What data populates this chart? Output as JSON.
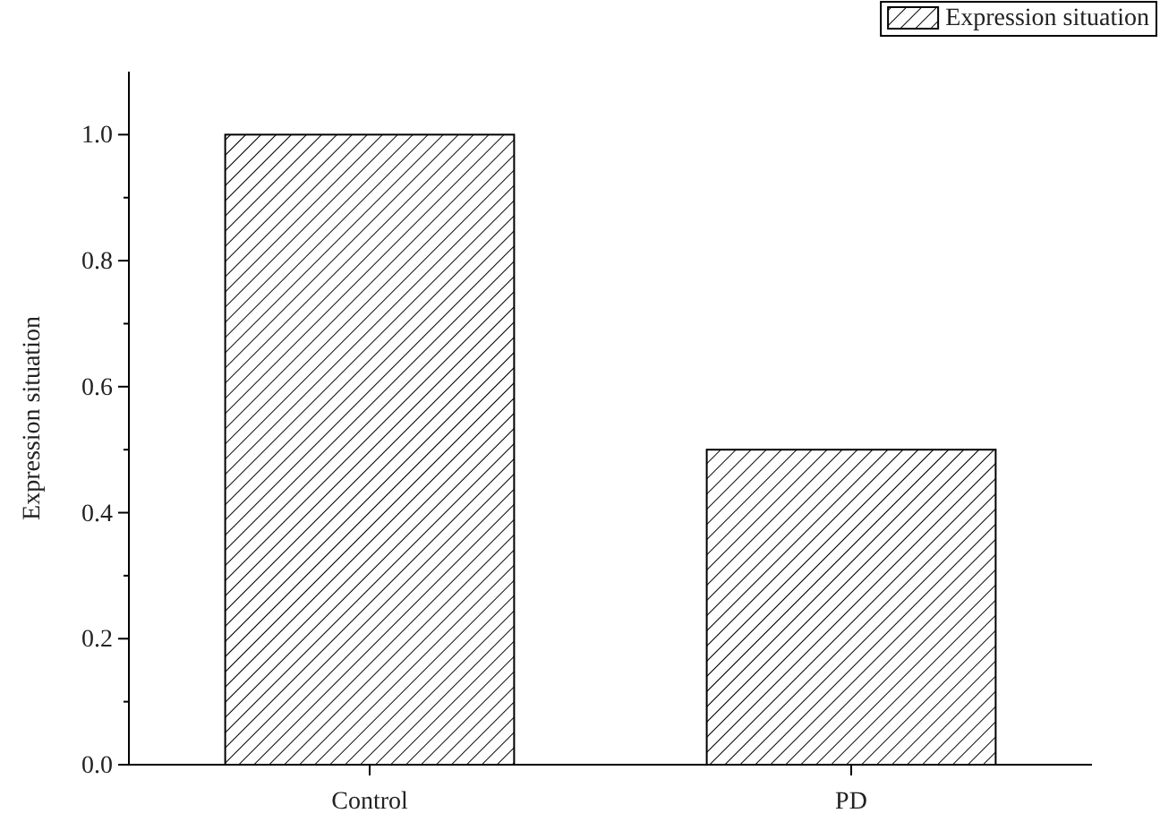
{
  "chart_data": {
    "type": "bar",
    "ylabel": "Expression situation",
    "categories": [
      "Control",
      "PD"
    ],
    "series": [
      {
        "name": "Expression situation",
        "color": "#000000",
        "values": [
          1.0,
          0.5
        ]
      }
    ],
    "ylim": [
      0,
      1.1
    ],
    "yticks": [
      {
        "value": 0,
        "label": "0.0"
      },
      {
        "value": 0.1,
        "label": null
      },
      {
        "value": 0.2,
        "label": "0.2"
      },
      {
        "value": 0.3,
        "label": null
      },
      {
        "value": 0.4,
        "label": "0.4"
      },
      {
        "value": 0.5,
        "label": null
      },
      {
        "value": 0.6,
        "label": "0.6"
      },
      {
        "value": 0.7,
        "label": null
      },
      {
        "value": 0.8,
        "label": "0.8"
      },
      {
        "value": 0.9,
        "label": null
      },
      {
        "value": 1.0,
        "label": "1.0"
      }
    ],
    "legend": "top right",
    "grid": false
  }
}
